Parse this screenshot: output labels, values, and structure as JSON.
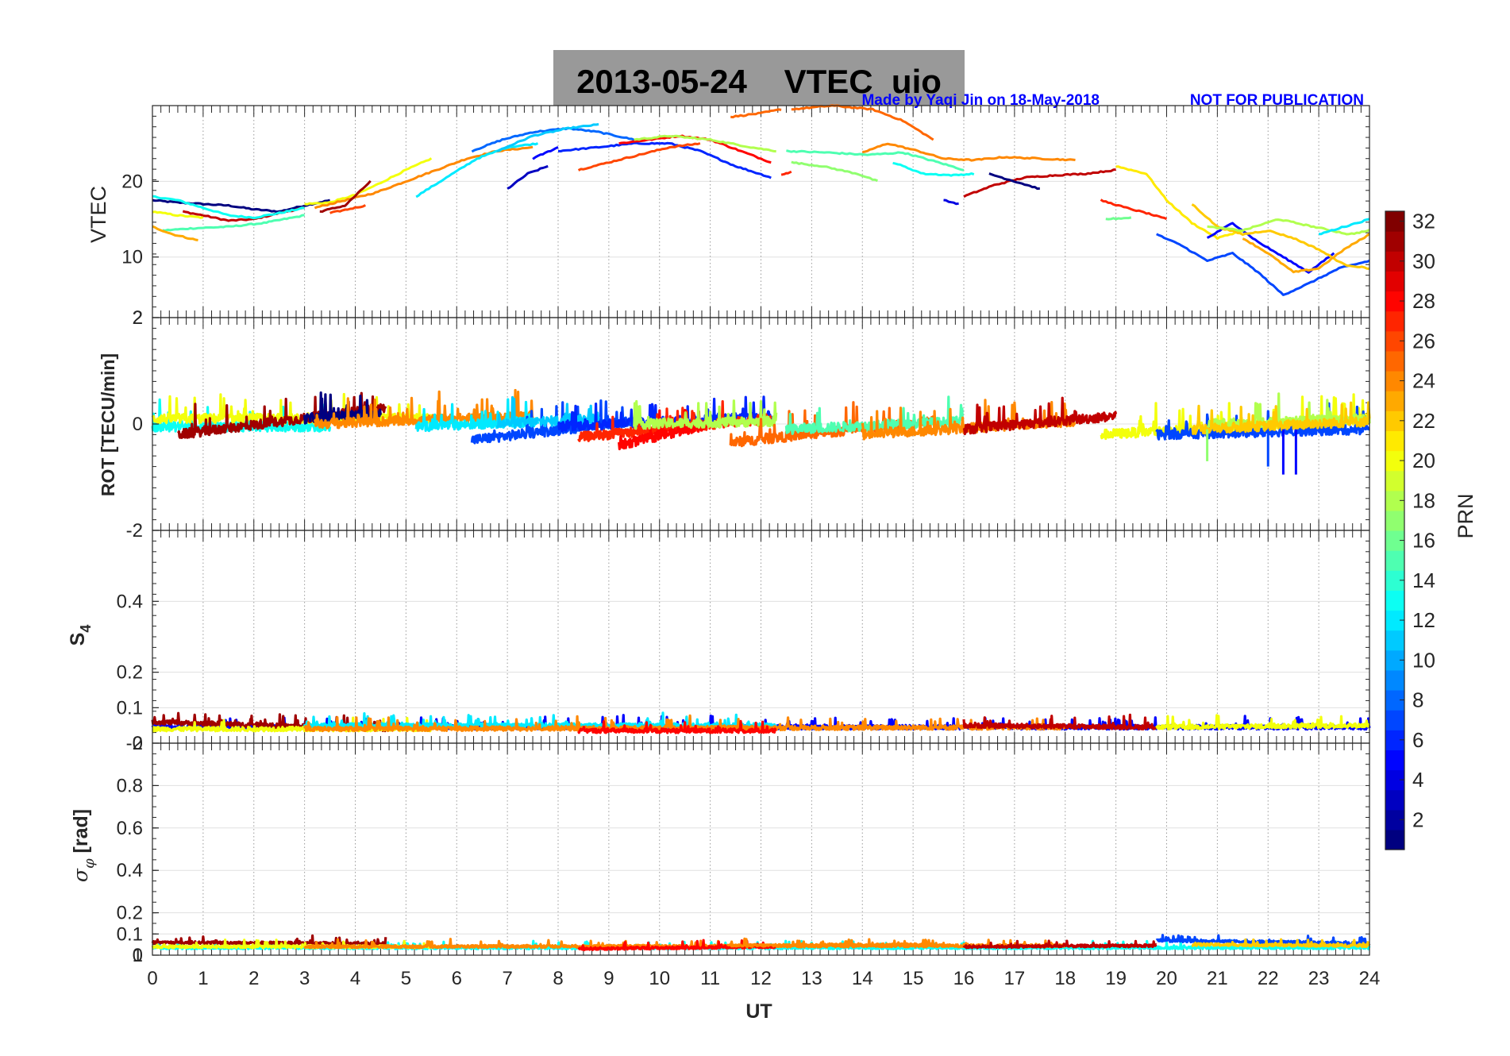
{
  "figure": {
    "title": "2013-05-24    VTEC  uio",
    "credit": "Made by Yaqi Jin on 18-May-2018",
    "notice": "NOT FOR PUBLICATION",
    "title_box_color": "#999999",
    "credit_color": "#0000ff"
  },
  "chart_data": [
    {
      "id": "vtec",
      "type": "line",
      "ylabel": "VTEC",
      "xlim": [
        0,
        24
      ],
      "ylim": [
        2,
        30
      ],
      "yticks": [
        10,
        20
      ],
      "extra_ytick_labels": [
        "2"
      ],
      "x_tick_labels_shown": false,
      "series": [
        {
          "prn": 1,
          "x": [
            0,
            0.5,
            1,
            1.5,
            2,
            2.5,
            3,
            3.5
          ],
          "y": [
            17.5,
            17.2,
            17.0,
            16.8,
            16.3,
            16.0,
            16.8,
            17.5
          ]
        },
        {
          "prn": 30,
          "x": [
            0.6,
            1,
            1.5,
            2,
            2.5,
            3
          ],
          "y": [
            16.0,
            15.5,
            14.8,
            15.0,
            15.8,
            16.5
          ]
        },
        {
          "prn": 13,
          "x": [
            0,
            0.5,
            1,
            1.5,
            2,
            2.5,
            3
          ],
          "y": [
            18.0,
            17.5,
            16.5,
            15.5,
            15.2,
            15.8,
            16.5
          ]
        },
        {
          "prn": 15,
          "x": [
            0.2,
            0.8,
            1.5,
            2.2,
            3
          ],
          "y": [
            13.5,
            13.8,
            14.0,
            14.5,
            15.5
          ]
        },
        {
          "prn": 20,
          "x": [
            0,
            0.5,
            1
          ],
          "y": [
            16.0,
            15.5,
            15.2
          ]
        },
        {
          "prn": 23,
          "x": [
            0,
            0.4,
            0.9
          ],
          "y": [
            14.0,
            13.0,
            12.2
          ]
        },
        {
          "prn": 20,
          "x": [
            3,
            3.5,
            4,
            4.5,
            5,
            5.5
          ],
          "y": [
            17.0,
            17.2,
            18.2,
            19.8,
            21.5,
            23.0
          ]
        },
        {
          "prn": 24,
          "x": [
            3.2,
            3.8,
            4.4,
            5,
            5.6,
            6.2,
            6.8,
            7.5
          ],
          "y": [
            16.5,
            17.5,
            18.5,
            20.0,
            21.5,
            23.0,
            24.0,
            24.5
          ]
        },
        {
          "prn": 31,
          "x": [
            3.3,
            3.8,
            4.3
          ],
          "y": [
            16.0,
            16.8,
            20.0
          ]
        },
        {
          "prn": 26,
          "x": [
            3.5,
            4.2
          ],
          "y": [
            15.8,
            16.8
          ]
        },
        {
          "prn": 12,
          "x": [
            5.2,
            5.8,
            6.4,
            7,
            7.6
          ],
          "y": [
            18.0,
            20.5,
            23.0,
            24.5,
            25.0
          ]
        },
        {
          "prn": 8,
          "x": [
            6.3,
            6.9,
            7.5,
            8.2,
            8.8,
            9.5
          ],
          "y": [
            24.0,
            25.5,
            26.5,
            27.0,
            26.5,
            25.5
          ]
        },
        {
          "prn": 11,
          "x": [
            6.8,
            7.5,
            8.2,
            8.8
          ],
          "y": [
            24.0,
            26.0,
            27.0,
            27.5
          ]
        },
        {
          "prn": 3,
          "x": [
            7.0,
            7.4,
            7.8
          ],
          "y": [
            19.0,
            21.0,
            22.0
          ]
        },
        {
          "prn": 5,
          "x": [
            7.5,
            8.0
          ],
          "y": [
            23.0,
            24.5
          ]
        },
        {
          "prn": 6,
          "x": [
            8.0,
            8.8,
            9.5,
            10.2,
            10.8,
            11.5,
            12.2
          ],
          "y": [
            24.0,
            24.5,
            25.0,
            25.0,
            24.0,
            22.0,
            20.5
          ]
        },
        {
          "prn": 28,
          "x": [
            9.2,
            9.8,
            10.4,
            11,
            11.6,
            12.2
          ],
          "y": [
            25.0,
            25.5,
            26.0,
            25.5,
            24.0,
            22.5
          ]
        },
        {
          "prn": 26,
          "x": [
            8.4,
            9,
            9.6,
            10.2,
            10.8
          ],
          "y": [
            21.5,
            22.5,
            23.5,
            24.5,
            25.0
          ]
        },
        {
          "prn": 18,
          "x": [
            9.5,
            10.2,
            11,
            11.8,
            12.3
          ],
          "y": [
            25.5,
            26.0,
            25.5,
            24.5,
            24.0
          ]
        },
        {
          "prn": 25,
          "x": [
            11.4,
            12.0,
            12.4
          ],
          "y": [
            28.5,
            29.0,
            29.5
          ]
        },
        {
          "prn": 25,
          "x": [
            12.6,
            13.4,
            14.2,
            14.8,
            15.4
          ],
          "y": [
            29.5,
            30.0,
            29.5,
            28.0,
            25.5
          ]
        },
        {
          "prn": 27,
          "x": [
            12.4,
            12.6
          ],
          "y": [
            20.8,
            21.3
          ]
        },
        {
          "prn": 15,
          "x": [
            12.5,
            13.3,
            14.1,
            14.8,
            15.5,
            16.0
          ],
          "y": [
            24.0,
            23.8,
            23.5,
            23.8,
            22.5,
            21.5
          ]
        },
        {
          "prn": 17,
          "x": [
            12.6,
            13.2,
            13.9,
            14.3
          ],
          "y": [
            22.5,
            22.0,
            21.0,
            20.0
          ]
        },
        {
          "prn": 24,
          "x": [
            14.0,
            14.5,
            15.1,
            15.6,
            16.2,
            16.8,
            17.5,
            18.2
          ],
          "y": [
            23.8,
            25.0,
            24.0,
            23.0,
            22.8,
            23.2,
            23.0,
            22.8
          ]
        },
        {
          "prn": 13,
          "x": [
            14.6,
            15.2,
            15.8,
            16.2
          ],
          "y": [
            22.5,
            21.0,
            20.8,
            21.0
          ]
        },
        {
          "prn": 4,
          "x": [
            15.6,
            15.9
          ],
          "y": [
            17.5,
            17.0
          ]
        },
        {
          "prn": 30,
          "x": [
            16.0,
            16.6,
            17.2,
            17.8,
            18.4,
            19.0
          ],
          "y": [
            18.0,
            19.5,
            20.5,
            20.8,
            21.0,
            21.5
          ]
        },
        {
          "prn": 1,
          "x": [
            16.5,
            17.0,
            17.5
          ],
          "y": [
            21.0,
            20.0,
            19.0
          ]
        },
        {
          "prn": 27,
          "x": [
            18.7,
            19.2,
            19.6,
            20.0
          ],
          "y": [
            17.5,
            16.5,
            15.8,
            15.0
          ]
        },
        {
          "prn": 16,
          "x": [
            18.8,
            19.3
          ],
          "y": [
            15.0,
            15.2
          ]
        },
        {
          "prn": 21,
          "x": [
            19.0,
            19.6,
            20.0,
            20.5,
            21.0,
            21.5
          ],
          "y": [
            22.0,
            21.0,
            17.5,
            14.5,
            12.5,
            13.5
          ]
        },
        {
          "prn": 7,
          "x": [
            19.8,
            20.3,
            20.8,
            21.3,
            21.8,
            22.3,
            22.8,
            23.4,
            24.0
          ],
          "y": [
            13.0,
            11.5,
            9.5,
            10.5,
            8.0,
            5.0,
            6.5,
            8.5,
            9.5
          ]
        },
        {
          "prn": 5,
          "x": [
            20.8,
            21.3,
            21.8,
            22.3,
            22.8,
            23.3
          ],
          "y": [
            12.5,
            14.5,
            12.0,
            10.0,
            8.0,
            10.5
          ]
        },
        {
          "prn": 22,
          "x": [
            20.5,
            21.0,
            21.5,
            22.0,
            22.5,
            23.0,
            23.5,
            24.0
          ],
          "y": [
            17.0,
            14.0,
            13.0,
            13.5,
            12.5,
            11.0,
            9.0,
            8.5
          ]
        },
        {
          "prn": 18,
          "x": [
            20.8,
            21.5,
            22.2,
            22.9,
            23.6,
            24.0
          ],
          "y": [
            14.0,
            13.5,
            15.0,
            14.0,
            13.0,
            13.5
          ]
        },
        {
          "prn": 12,
          "x": [
            23.0,
            23.5,
            24.0
          ],
          "y": [
            13.0,
            14.0,
            15.0
          ]
        },
        {
          "prn": 23,
          "x": [
            21.5,
            22.0,
            22.5,
            23.0,
            23.5,
            24.0
          ],
          "y": [
            12.5,
            10.5,
            8.0,
            8.5,
            11.0,
            13.0
          ]
        }
      ]
    },
    {
      "id": "rot",
      "type": "line",
      "ylabel": "ROT [TECU/min]",
      "xlim": [
        0,
        24
      ],
      "ylim": [
        -2,
        2
      ],
      "yticks": [
        -2,
        0,
        2
      ],
      "x_tick_labels_shown": false,
      "series": [
        {
          "prn": 13,
          "x": [
            0,
            3.5
          ],
          "y": [
            -0.05,
            -0.05
          ]
        },
        {
          "prn": 20,
          "x": [
            0,
            5.5
          ],
          "y": [
            0.1,
            0.1
          ]
        },
        {
          "prn": 31,
          "x": [
            0.5,
            4.6
          ],
          "y": [
            -0.2,
            0.3
          ]
        },
        {
          "prn": 1,
          "x": [
            3,
            4.5
          ],
          "y": [
            0.1,
            0.2
          ]
        },
        {
          "prn": 24,
          "x": [
            3.2,
            7.5
          ],
          "y": [
            0,
            0.15
          ]
        },
        {
          "prn": 12,
          "x": [
            5.2,
            7.6
          ],
          "y": [
            -0.05,
            0.05
          ]
        },
        {
          "prn": 7,
          "x": [
            6.3,
            9.5
          ],
          "y": [
            -0.3,
            0.05
          ]
        },
        {
          "prn": 11,
          "x": [
            6.8,
            8.8
          ],
          "y": [
            0,
            0.1
          ]
        },
        {
          "prn": 6,
          "x": [
            8.0,
            12.2
          ],
          "y": [
            -0.05,
            0.15
          ]
        },
        {
          "prn": 27,
          "x": [
            8.4,
            12.2
          ],
          "y": [
            -0.25,
            0.1
          ]
        },
        {
          "prn": 28,
          "x": [
            9.2,
            11.0
          ],
          "y": [
            -0.4,
            0
          ]
        },
        {
          "prn": 18,
          "x": [
            9.5,
            12.3
          ],
          "y": [
            0,
            0.05
          ]
        },
        {
          "prn": 25,
          "x": [
            11.4,
            15.4
          ],
          "y": [
            -0.35,
            0.05
          ]
        },
        {
          "prn": 15,
          "x": [
            12.5,
            16.0
          ],
          "y": [
            -0.1,
            0.05
          ]
        },
        {
          "prn": 24,
          "x": [
            14.0,
            18.2
          ],
          "y": [
            -0.2,
            0.05
          ]
        },
        {
          "prn": 30,
          "x": [
            16.0,
            19.0
          ],
          "y": [
            -0.1,
            0.15
          ]
        },
        {
          "prn": 20,
          "x": [
            18.7,
            24.0
          ],
          "y": [
            -0.2,
            0.1
          ]
        },
        {
          "prn": 7,
          "x": [
            19.8,
            24.0
          ],
          "y": [
            -0.2,
            -0.1
          ]
        },
        {
          "prn": 18,
          "x": [
            20.8,
            24.0
          ],
          "y": [
            0,
            0.1
          ]
        },
        {
          "prn": 22,
          "x": [
            20.5,
            24.0
          ],
          "y": [
            -0.1,
            0.05
          ]
        }
      ],
      "spikes": [
        {
          "prn": 7,
          "x": 22.0,
          "y": -0.8
        },
        {
          "prn": 5,
          "x": 22.3,
          "y": -0.95
        },
        {
          "prn": 5,
          "x": 22.55,
          "y": -0.95
        },
        {
          "prn": 17,
          "x": 20.8,
          "y": -0.7
        }
      ]
    },
    {
      "id": "s4",
      "type": "line",
      "ylabel": "S4",
      "xlim": [
        0,
        24
      ],
      "ylim": [
        0,
        0.6
      ],
      "yticks": [
        0,
        0.1,
        0.2,
        0.4
      ],
      "extra_ytick_labels": [
        "-2"
      ],
      "x_tick_labels_shown": false,
      "series": [
        {
          "prn": 5,
          "x": [
            0,
            24
          ],
          "y": [
            0.045,
            0.045
          ]
        },
        {
          "prn": 31,
          "x": [
            0,
            4.6
          ],
          "y": [
            0.06,
            0.04
          ]
        },
        {
          "prn": 20,
          "x": [
            0,
            5.5
          ],
          "y": [
            0.04,
            0.04
          ]
        },
        {
          "prn": 12,
          "x": [
            3,
            12.3
          ],
          "y": [
            0.05,
            0.05
          ]
        },
        {
          "prn": 24,
          "x": [
            3,
            18
          ],
          "y": [
            0.04,
            0.045
          ]
        },
        {
          "prn": 28,
          "x": [
            8.4,
            12.3
          ],
          "y": [
            0.035,
            0.035
          ]
        },
        {
          "prn": 30,
          "x": [
            16,
            19.8
          ],
          "y": [
            0.05,
            0.045
          ]
        },
        {
          "prn": 20,
          "x": [
            19.8,
            24
          ],
          "y": [
            0.045,
            0.05
          ]
        }
      ]
    },
    {
      "id": "sigma_phi",
      "type": "line",
      "ylabel": "σφ [rad]",
      "xlim": [
        0,
        24
      ],
      "ylim": [
        0,
        1
      ],
      "yticks": [
        0,
        0.1,
        0.2,
        0.4,
        0.6,
        0.8
      ],
      "extra_ytick_labels": [
        "1"
      ],
      "xticks": [
        0,
        1,
        2,
        3,
        4,
        5,
        6,
        7,
        8,
        9,
        10,
        11,
        12,
        13,
        14,
        15,
        16,
        17,
        18,
        19,
        20,
        21,
        22,
        23,
        24
      ],
      "xlabel": "UT",
      "series": [
        {
          "prn": 13,
          "x": [
            0,
            24
          ],
          "y": [
            0.035,
            0.035
          ]
        },
        {
          "prn": 31,
          "x": [
            0,
            4.6
          ],
          "y": [
            0.06,
            0.055
          ]
        },
        {
          "prn": 20,
          "x": [
            0,
            5.5
          ],
          "y": [
            0.04,
            0.04
          ]
        },
        {
          "prn": 24,
          "x": [
            3,
            18
          ],
          "y": [
            0.04,
            0.045
          ]
        },
        {
          "prn": 28,
          "x": [
            8.4,
            12.3
          ],
          "y": [
            0.03,
            0.04
          ]
        },
        {
          "prn": 24,
          "x": [
            11.4,
            15.4
          ],
          "y": [
            0.045,
            0.05
          ]
        },
        {
          "prn": 30,
          "x": [
            16,
            19.8
          ],
          "y": [
            0.04,
            0.045
          ]
        },
        {
          "prn": 7,
          "x": [
            19.8,
            24
          ],
          "y": [
            0.07,
            0.055
          ]
        },
        {
          "prn": 22,
          "x": [
            20.5,
            24
          ],
          "y": [
            0.05,
            0.045
          ]
        }
      ]
    }
  ],
  "colorbar": {
    "label": "PRN",
    "range": [
      1,
      32
    ],
    "ticks": [
      2,
      4,
      6,
      8,
      10,
      12,
      14,
      16,
      18,
      20,
      22,
      24,
      26,
      28,
      30,
      32
    ],
    "colormap": "jet"
  }
}
